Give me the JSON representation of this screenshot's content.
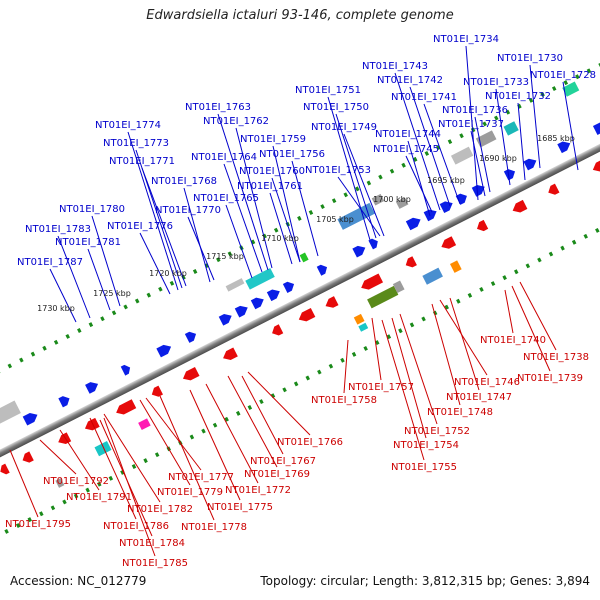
{
  "title": "Edwardsiella ictaluri 93-146, complete genome",
  "footer": {
    "accession": "Accession: NC_012779",
    "summary": "Topology: circular; Length: 3,812,315 bp; Genes: 3,894"
  },
  "colors": {
    "label_top": "#0000cc",
    "label_bottom": "#cc0000",
    "tick": "#1a8a1a",
    "backbone": "#7a7a7a",
    "gene_forward": "#0a1ee6",
    "gene_reverse": "#e60a0a"
  },
  "scale_labels": [
    "1685 kbp",
    "1690 kbp",
    "1695 kbp",
    "1700 kbp",
    "1705 kbp",
    "1710 kbp",
    "1715 kbp",
    "1720 kbp",
    "1725 kbp",
    "1730 kbp"
  ],
  "top_labels": [
    "NT01EI_1734",
    "NT01EI_1730",
    "NT01EI_1728",
    "NT01EI_1743",
    "NT01EI_1742",
    "NT01EI_1733",
    "NT01EI_1741",
    "NT01EI_1732",
    "NT01EI_1736",
    "NT01EI_1737",
    "NT01EI_1751",
    "NT01EI_1750",
    "NT01EI_1749",
    "NT01EI_1744",
    "NT01EI_1745",
    "NT01EI_1753",
    "NT01EI_1763",
    "NT01EI_1762",
    "NT01EI_1759",
    "NT01EI_1764",
    "NT01EI_1756",
    "NT01EI_1760",
    "NT01EI_1761",
    "NT01EI_1765",
    "NT01EI_1774",
    "NT01EI_1773",
    "NT01EI_1771",
    "NT01EI_1768",
    "NT01EI_1770",
    "NT01EI_1776",
    "NT01EI_1780",
    "NT01EI_1783",
    "NT01EI_1781",
    "NT01EI_1787"
  ],
  "bottom_labels": [
    "NT01EI_1740",
    "NT01EI_1738",
    "NT01EI_1739",
    "NT01EI_1757",
    "NT01EI_1746",
    "NT01EI_1758",
    "NT01EI_1747",
    "NT01EI_1748",
    "NT01EI_1752",
    "NT01EI_1754",
    "NT01EI_1766",
    "NT01EI_1767",
    "NT01EI_1755",
    "NT01EI_1777",
    "NT01EI_1769",
    "NT01EI_1792",
    "NT01EI_1779",
    "NT01EI_1772",
    "NT01EI_1791",
    "NT01EI_1782",
    "NT01EI_1775",
    "NT01EI_1795",
    "NT01EI_1786",
    "NT01EI_1778",
    "NT01EI_1784",
    "NT01EI_1785"
  ]
}
